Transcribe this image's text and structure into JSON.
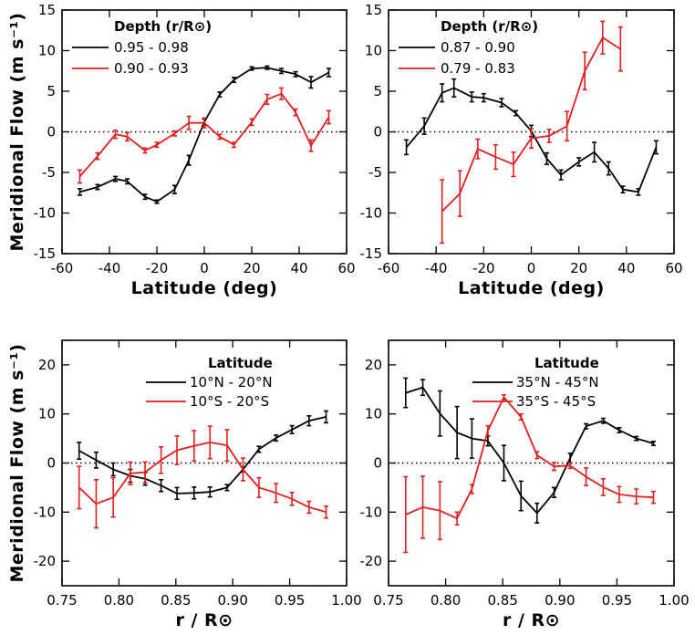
{
  "chart_data": [
    {
      "type": "line",
      "panel": "top-left",
      "xlabel": "Latitude (deg)",
      "ylabel": "Meridional Flow (m s⁻¹)",
      "xlim": [
        -60,
        60
      ],
      "ylim": [
        -15,
        15
      ],
      "xticks": [
        -60,
        -40,
        -20,
        0,
        20,
        40,
        60
      ],
      "yticks": [
        -15,
        -10,
        -5,
        0,
        5,
        10,
        15
      ],
      "zero_line": "dotted",
      "legend": {
        "title": "Depth (r/R⊙)",
        "placement": "top-left"
      },
      "series": [
        {
          "name": "0.95 - 0.98",
          "color": "#000000",
          "x": [
            -52.5,
            -45,
            -37.5,
            -32.5,
            -25,
            -20,
            -12.5,
            -6.5,
            0,
            6.5,
            12.5,
            20,
            26.5,
            32.5,
            38.5,
            45,
            52.5
          ],
          "y": [
            -7.4,
            -6.8,
            -5.8,
            -6.1,
            -8.0,
            -8.6,
            -7.1,
            -3.5,
            1.2,
            4.6,
            6.4,
            7.8,
            7.9,
            7.5,
            7.1,
            6.1,
            7.3
          ],
          "err": [
            0.4,
            0.3,
            0.3,
            0.3,
            0.3,
            0.2,
            0.5,
            0.6,
            0.4,
            0.3,
            0.3,
            0.2,
            0.2,
            0.3,
            0.3,
            0.7,
            0.5
          ]
        },
        {
          "name": "0.90 - 0.93",
          "color": "#e02020",
          "x": [
            -52.5,
            -45,
            -37.5,
            -32.5,
            -25,
            -20,
            -12.5,
            -6.5,
            0,
            6.5,
            12.5,
            20,
            26.5,
            32.5,
            38.5,
            45,
            52.5
          ],
          "y": [
            -5.5,
            -3.0,
            -0.3,
            -0.6,
            -2.3,
            -1.6,
            -0.2,
            1.1,
            1.1,
            -0.6,
            -1.6,
            1.2,
            4.0,
            4.7,
            2.4,
            -1.7,
            1.8
          ],
          "err": [
            0.8,
            0.4,
            0.5,
            0.5,
            0.3,
            0.3,
            0.3,
            0.8,
            0.6,
            0.3,
            0.3,
            0.4,
            0.6,
            0.7,
            0.4,
            0.7,
            0.8
          ]
        }
      ]
    },
    {
      "type": "line",
      "panel": "top-right",
      "xlabel": "Latitude (deg)",
      "ylabel": "",
      "xlim": [
        -60,
        60
      ],
      "ylim": [
        -15,
        15
      ],
      "xticks": [
        -60,
        -40,
        -20,
        0,
        20,
        40,
        60
      ],
      "yticks": [
        -15,
        -10,
        -5,
        0,
        5,
        10,
        15
      ],
      "zero_line": "dotted",
      "legend": {
        "title": "Depth (r/R⊙)",
        "placement": "top-left"
      },
      "series": [
        {
          "name": "0.87 - 0.90",
          "color": "#000000",
          "x": [
            -52.5,
            -45,
            -37.5,
            -32.5,
            -25,
            -20,
            -12.5,
            -6.5,
            0,
            6.5,
            12.5,
            20,
            26.5,
            32.5,
            38.5,
            45,
            52.5
          ],
          "y": [
            -1.9,
            0.7,
            4.8,
            5.4,
            4.3,
            4.2,
            3.6,
            2.3,
            0.1,
            -3.3,
            -5.3,
            -3.7,
            -2.5,
            -4.5,
            -7.1,
            -7.4,
            -1.9
          ],
          "err": [
            0.9,
            1.0,
            1.1,
            1.1,
            0.6,
            0.5,
            0.5,
            0.3,
            0.7,
            0.7,
            0.6,
            0.5,
            1.2,
            0.8,
            0.4,
            0.4,
            0.8
          ]
        },
        {
          "name": "0.79 - 0.83",
          "color": "#e02020",
          "x": [
            -37.5,
            -30,
            -22.5,
            -15,
            -7.5,
            0,
            7.5,
            15,
            22.5,
            30,
            37.5
          ],
          "y": [
            -9.8,
            -7.6,
            -2.1,
            -3.1,
            -4.0,
            -0.8,
            -0.5,
            0.7,
            7.5,
            11.6,
            10.2
          ],
          "err": [
            3.9,
            2.8,
            1.2,
            1.5,
            1.5,
            1.2,
            0.8,
            1.8,
            2.3,
            2.0,
            2.7
          ]
        }
      ]
    },
    {
      "type": "line",
      "panel": "bottom-left",
      "xlabel": "r / R⊙",
      "ylabel": "Meridional Flow (m s⁻¹)",
      "xlim": [
        0.75,
        1.0
      ],
      "ylim": [
        -25,
        25
      ],
      "xticks": [
        0.75,
        0.8,
        0.85,
        0.9,
        0.95,
        1.0
      ],
      "yticks": [
        -20,
        -10,
        0,
        10,
        20
      ],
      "zero_line": "dotted",
      "legend": {
        "title": "Latitude",
        "placement": "top-right"
      },
      "series": [
        {
          "name": "10°N - 20°N",
          "color": "#000000",
          "x": [
            0.765,
            0.78,
            0.795,
            0.81,
            0.823,
            0.837,
            0.851,
            0.866,
            0.88,
            0.895,
            0.909,
            0.923,
            0.938,
            0.952,
            0.967,
            0.982
          ],
          "y": [
            2.5,
            0.6,
            -1.3,
            -2.6,
            -3.2,
            -4.6,
            -6.2,
            -6.1,
            -5.9,
            -5.0,
            -1.3,
            2.8,
            5.1,
            6.8,
            8.6,
            9.4
          ],
          "err": [
            1.7,
            1.6,
            1.3,
            1.3,
            1.3,
            1.2,
            1.2,
            1.2,
            1.0,
            0.6,
            0.5,
            0.6,
            0.6,
            0.8,
            1.0,
            1.2
          ]
        },
        {
          "name": "10°S - 20°S",
          "color": "#e02020",
          "x": [
            0.765,
            0.78,
            0.795,
            0.81,
            0.823,
            0.837,
            0.851,
            0.866,
            0.88,
            0.895,
            0.909,
            0.923,
            0.938,
            0.952,
            0.967,
            0.982
          ],
          "y": [
            -5.0,
            -8.3,
            -7.0,
            -2.1,
            -1.9,
            0.6,
            2.6,
            3.5,
            4.2,
            3.6,
            -1.3,
            -5.0,
            -6.1,
            -7.3,
            -9.0,
            -10.0
          ],
          "err": [
            4.3,
            4.9,
            4.0,
            2.3,
            2.1,
            2.7,
            2.9,
            3.1,
            3.3,
            3.2,
            2.3,
            2.0,
            1.9,
            1.3,
            1.2,
            1.2
          ]
        }
      ]
    },
    {
      "type": "line",
      "panel": "bottom-right",
      "xlabel": "r / R⊙",
      "ylabel": "",
      "xlim": [
        0.75,
        1.0
      ],
      "ylim": [
        -25,
        25
      ],
      "xticks": [
        0.75,
        0.8,
        0.85,
        0.9,
        0.95,
        1.0
      ],
      "yticks": [
        -20,
        -10,
        0,
        10,
        20
      ],
      "zero_line": "dotted",
      "legend": {
        "title": "Latitude",
        "placement": "top-right"
      },
      "series": [
        {
          "name": "35°N - 45°N",
          "color": "#000000",
          "x": [
            0.765,
            0.78,
            0.795,
            0.81,
            0.823,
            0.837,
            0.851,
            0.866,
            0.88,
            0.895,
            0.909,
            0.923,
            0.938,
            0.952,
            0.967,
            0.982
          ],
          "y": [
            14.3,
            15.4,
            10.1,
            6.2,
            5.0,
            4.5,
            0.0,
            -6.7,
            -10.2,
            -6.0,
            1.0,
            7.5,
            8.6,
            6.7,
            5.0,
            4.0
          ],
          "err": [
            3.0,
            1.6,
            4.6,
            5.3,
            4.0,
            1.0,
            3.6,
            3.0,
            2.0,
            1.0,
            1.0,
            0.5,
            0.5,
            0.5,
            0.4,
            0.4
          ]
        },
        {
          "name": "35°S - 45°S",
          "color": "#e02020",
          "x": [
            0.765,
            0.78,
            0.795,
            0.81,
            0.823,
            0.837,
            0.851,
            0.866,
            0.88,
            0.895,
            0.909,
            0.923,
            0.938,
            0.952,
            0.967,
            0.982
          ],
          "y": [
            -10.5,
            -9.0,
            -9.7,
            -11.3,
            -5.3,
            6.6,
            13.4,
            9.4,
            1.6,
            -0.7,
            -0.5,
            -2.8,
            -4.9,
            -6.4,
            -6.8,
            -7.0
          ],
          "err": [
            7.7,
            6.3,
            5.9,
            1.3,
            0.9,
            1.0,
            0.5,
            0.6,
            0.7,
            0.8,
            0.6,
            1.8,
            1.7,
            1.6,
            1.5,
            1.2
          ]
        }
      ]
    }
  ]
}
